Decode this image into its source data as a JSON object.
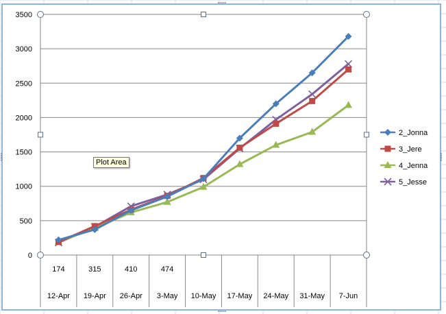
{
  "tooltip": "Plot Area",
  "chart_data": {
    "type": "line",
    "categories": [
      "12-Apr",
      "19-Apr",
      "26-Apr",
      "3-May",
      "10-May",
      "17-May",
      "24-May",
      "31-May",
      "7-Jun"
    ],
    "table_row": [
      "174",
      "315",
      "410",
      "474",
      "",
      "",
      "",
      "",
      ""
    ],
    "ylim": [
      0,
      3500
    ],
    "yticks": [
      0,
      500,
      1000,
      1500,
      2000,
      2500,
      3000,
      3500
    ],
    "grid": true,
    "legend_position": "right",
    "series": [
      {
        "name": "2_Jonna",
        "color": "#4a7ebb",
        "marker": "diamond",
        "values": [
          220,
          370,
          650,
          850,
          1110,
          1700,
          2200,
          2650,
          3180
        ]
      },
      {
        "name": "3_Jere",
        "color": "#be4b48",
        "marker": "square",
        "values": [
          190,
          420,
          660,
          860,
          1120,
          1560,
          1910,
          2240,
          2700
        ]
      },
      {
        "name": "4_Jenna",
        "color": "#98b954",
        "marker": "triangle",
        "values": [
          190,
          390,
          620,
          770,
          990,
          1320,
          1600,
          1790,
          2180
        ]
      },
      {
        "name": "5_Jesse",
        "color": "#7d5fa0",
        "marker": "x",
        "values": [
          180,
          410,
          710,
          880,
          1100,
          1550,
          1970,
          2340,
          2780
        ]
      }
    ]
  }
}
